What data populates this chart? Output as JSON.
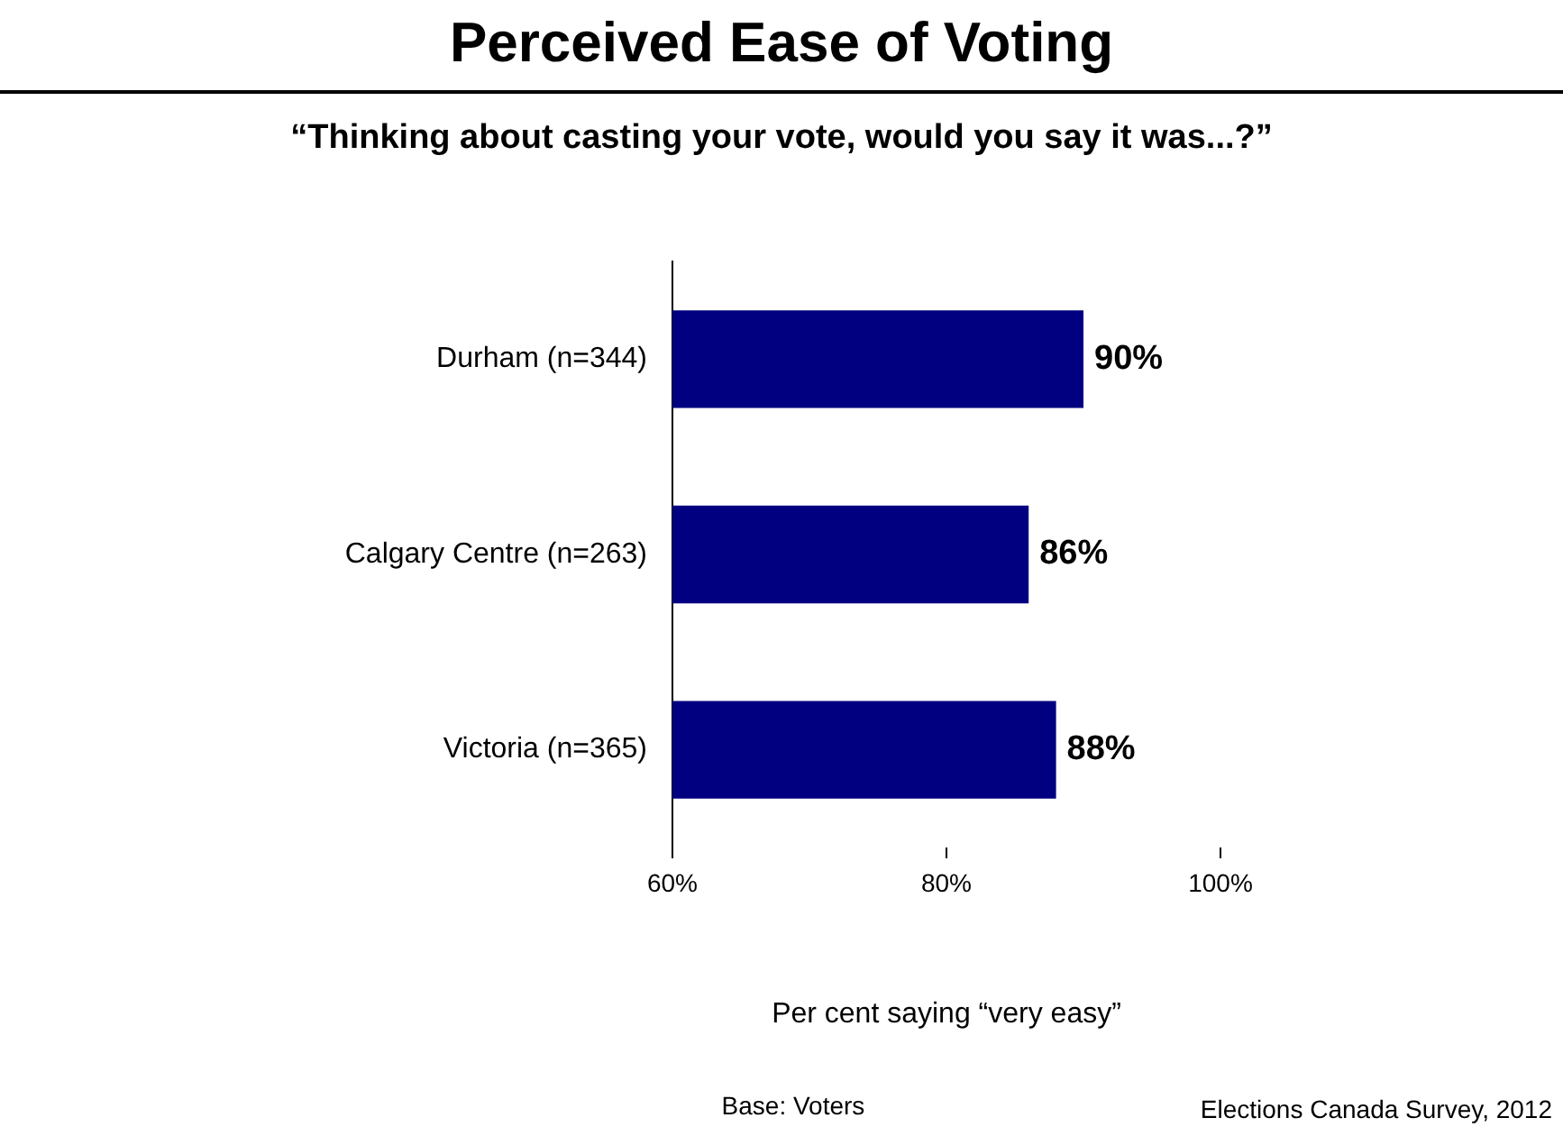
{
  "chart_data": {
    "type": "bar",
    "orientation": "horizontal",
    "title": "Perceived Ease of Voting",
    "subtitle": "“Thinking about casting your vote, would you say it was...?”",
    "xlabel": "Per cent saying “very easy”",
    "categories": [
      "Durham (n=344)",
      "Calgary Centre (n=263)",
      "Victoria (n=365)"
    ],
    "values": [
      90,
      86,
      88
    ],
    "color": "#000080",
    "value_labels": [
      "90%",
      "86%",
      "88%"
    ],
    "xlim": [
      60,
      100
    ],
    "xticks": [
      {
        "value": 60,
        "label": "60%"
      },
      {
        "value": 80,
        "label": "80%"
      },
      {
        "value": 100,
        "label": "100%"
      }
    ],
    "grid": false,
    "legend": false,
    "annotations": [
      "Base: Voters",
      "Elections Canada Survey, 2012"
    ]
  }
}
